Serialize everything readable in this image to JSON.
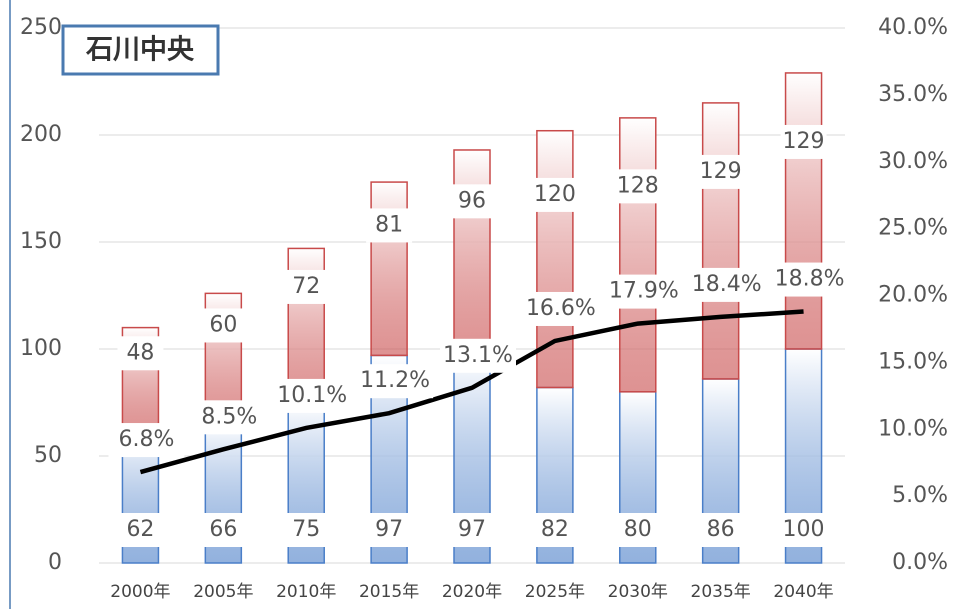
{
  "chart_data": {
    "type": "bar",
    "title": "石川中央",
    "categories": [
      "2000年",
      "2005年",
      "2010年",
      "2015年",
      "2020年",
      "2025年",
      "2030年",
      "2035年",
      "2040年"
    ],
    "series": [
      {
        "color": "#4a7ec8",
        "values": [
          62,
          66,
          75,
          97,
          97,
          82,
          80,
          86,
          100
        ]
      },
      {
        "color": "#c84a4a",
        "values": [
          48,
          60,
          72,
          81,
          96,
          120,
          128,
          129,
          129
        ]
      },
      {
        "type": "line",
        "axis": "y2",
        "color": "#000000",
        "values": [
          6.8,
          8.5,
          10.1,
          11.2,
          13.1,
          16.6,
          17.9,
          18.4,
          18.8
        ],
        "value_labels": [
          "6.8%",
          "8.5%",
          "10.1%",
          "11.2%",
          "13.1%",
          "16.6%",
          "17.9%",
          "18.4%",
          "18.8%"
        ]
      }
    ],
    "ylim": [
      0,
      250
    ],
    "yticks": [
      0,
      50,
      100,
      150,
      200,
      250
    ],
    "y2lim": [
      0,
      40
    ],
    "y2ticks": [
      {
        "value": 0,
        "label": "0.0%"
      },
      {
        "value": 5,
        "label": "5.0%"
      },
      {
        "value": 10,
        "label": "10.0%"
      },
      {
        "value": 15,
        "label": "15.0%"
      },
      {
        "value": 20,
        "label": "20.0%"
      },
      {
        "value": 25,
        "label": "25.0%"
      },
      {
        "value": 30,
        "label": "30.0%"
      },
      {
        "value": 35,
        "label": "35.0%"
      },
      {
        "value": 40,
        "label": "40.0%"
      }
    ],
    "grid": true,
    "stacked": true
  }
}
